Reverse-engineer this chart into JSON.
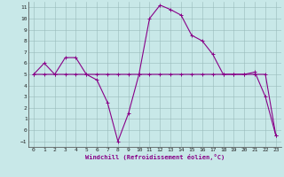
{
  "xlabel": "Windchill (Refroidissement éolien,°C)",
  "bg_color": "#c8e8e8",
  "line_color": "#880088",
  "grid_color": "#99bbbb",
  "x_values": [
    0,
    1,
    2,
    3,
    4,
    5,
    6,
    7,
    8,
    9,
    10,
    11,
    12,
    13,
    14,
    15,
    16,
    17,
    18,
    19,
    20,
    21,
    22,
    23
  ],
  "curve1": [
    5.0,
    6.0,
    5.0,
    6.5,
    6.5,
    5.0,
    4.5,
    2.5,
    -1.0,
    1.5,
    5.0,
    10.0,
    11.2,
    10.8,
    10.3,
    8.5,
    8.0,
    6.8,
    5.0,
    5.0,
    5.0,
    5.2,
    3.0,
    -0.5
  ],
  "curve2": [
    5.0,
    5.0,
    5.0,
    5.0,
    5.0,
    5.0,
    5.0,
    5.0,
    5.0,
    5.0,
    5.0,
    5.0,
    5.0,
    5.0,
    5.0,
    5.0,
    5.0,
    5.0,
    5.0,
    5.0,
    5.0,
    5.0,
    5.0,
    -0.5
  ],
  "xlim": [
    -0.5,
    23.5
  ],
  "ylim": [
    -1.5,
    11.5
  ],
  "yticks": [
    -1,
    0,
    1,
    2,
    3,
    4,
    5,
    6,
    7,
    8,
    9,
    10,
    11
  ],
  "xticks": [
    0,
    1,
    2,
    3,
    4,
    5,
    6,
    7,
    8,
    9,
    10,
    11,
    12,
    13,
    14,
    15,
    16,
    17,
    18,
    19,
    20,
    21,
    22,
    23
  ]
}
